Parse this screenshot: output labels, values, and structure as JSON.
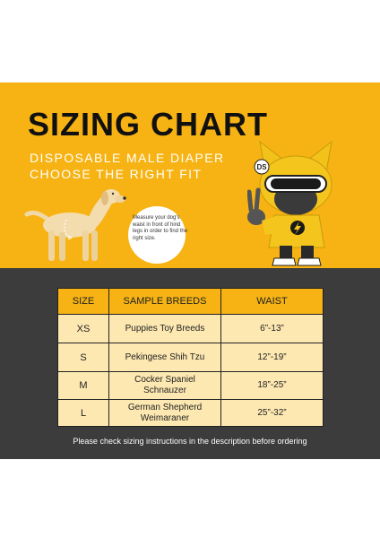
{
  "header": {
    "title": "SIZING CHART",
    "subtitle_line1": "DISPOSABLE MALE DIAPER",
    "subtitle_line2": "CHOOSE THE RIGHT FIT"
  },
  "illustration": {
    "measure_note": "Measure your dog's waist in front of hind legs in order to find the right size.",
    "mascot_badge": "DS",
    "mascot_icon": "lightning-bolt-icon"
  },
  "table": {
    "headers": [
      "SIZE",
      "SAMPLE BREEDS",
      "WAIST"
    ],
    "rows": [
      {
        "size": "XS",
        "breeds": "Puppies Toy Breeds",
        "waist": "6”-13”"
      },
      {
        "size": "S",
        "breeds": "Pekingese Shih Tzu",
        "waist": "12”-19”"
      },
      {
        "size": "M",
        "breeds": "Cocker Spaniel\nSchnauzer",
        "waist": "18”-25”"
      },
      {
        "size": "L",
        "breeds": "German Shepherd\nWeimaraner",
        "waist": "25”-32”"
      }
    ]
  },
  "footer": {
    "note": "Please check sizing instructions in the description before ordering"
  },
  "colors": {
    "yellow": "#f6b313",
    "dark": "#3c3c3c",
    "cell": "#fde8b1"
  }
}
